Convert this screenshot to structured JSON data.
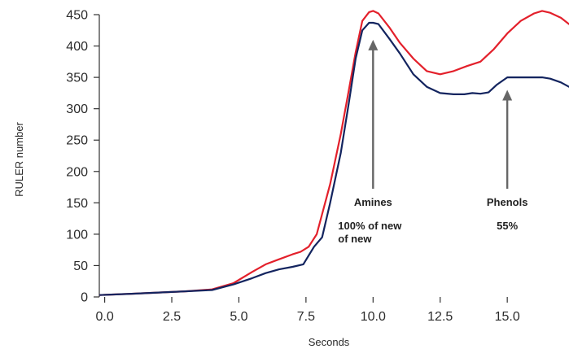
{
  "chart_data": {
    "type": "line",
    "title": "",
    "xlabel": "Seconds",
    "ylabel": "RULER number",
    "xlim": [
      -0.2,
      17.3
    ],
    "ylim": [
      0,
      450
    ],
    "x_ticks": [
      "0.0",
      "2.5",
      "5.0",
      "7.5",
      "10.0",
      "12.5",
      "15.0"
    ],
    "y_ticks": [
      "0",
      "50",
      "100",
      "150",
      "200",
      "250",
      "300",
      "350",
      "400",
      "450"
    ],
    "grid": false,
    "legend": "none",
    "series": [
      {
        "color": "#e3202b",
        "x": [
          -0.2,
          1,
          2,
          3,
          4,
          4.8,
          5.5,
          6,
          6.5,
          7,
          7.3,
          7.6,
          7.9,
          8.4,
          8.8,
          9.1,
          9.35,
          9.6,
          9.85,
          10.0,
          10.2,
          10.6,
          11.0,
          11.5,
          12.0,
          12.5,
          13.0,
          13.5,
          14.0,
          14.5,
          15.0,
          15.5,
          16.0,
          16.3,
          16.6,
          17.0,
          17.3
        ],
        "values": [
          3,
          5,
          7,
          9,
          12,
          22,
          40,
          52,
          60,
          68,
          72,
          80,
          100,
          180,
          260,
          330,
          390,
          440,
          454,
          456,
          452,
          430,
          405,
          380,
          360,
          355,
          360,
          368,
          375,
          395,
          420,
          440,
          452,
          456,
          453,
          445,
          435
        ]
      },
      {
        "color": "#13245f",
        "x": [
          -0.2,
          1,
          2,
          3,
          4,
          4.8,
          5.5,
          6,
          6.5,
          7,
          7.4,
          7.8,
          8.1,
          8.4,
          8.8,
          9.1,
          9.35,
          9.6,
          9.85,
          10.0,
          10.2,
          10.6,
          11.0,
          11.5,
          12.0,
          12.5,
          13.0,
          13.4,
          13.7,
          14.0,
          14.3,
          14.6,
          15.0,
          15.5,
          16.0,
          16.3,
          16.6,
          17.0,
          17.3
        ],
        "values": [
          3,
          5,
          7,
          9,
          11,
          20,
          30,
          38,
          44,
          48,
          52,
          80,
          95,
          150,
          230,
          310,
          380,
          425,
          437,
          437,
          435,
          412,
          388,
          355,
          335,
          325,
          323,
          323,
          325,
          324,
          326,
          338,
          350,
          350,
          350,
          350,
          348,
          342,
          335
        ]
      }
    ],
    "annotations": [
      {
        "x": 10.0,
        "y_from": 60,
        "y_to": 410,
        "lines": [
          "Amines",
          "100% of new",
          "of new"
        ]
      },
      {
        "x": 15.0,
        "y_from": 60,
        "y_to": 330,
        "lines": [
          "Phenols",
          "55%"
        ]
      }
    ]
  }
}
